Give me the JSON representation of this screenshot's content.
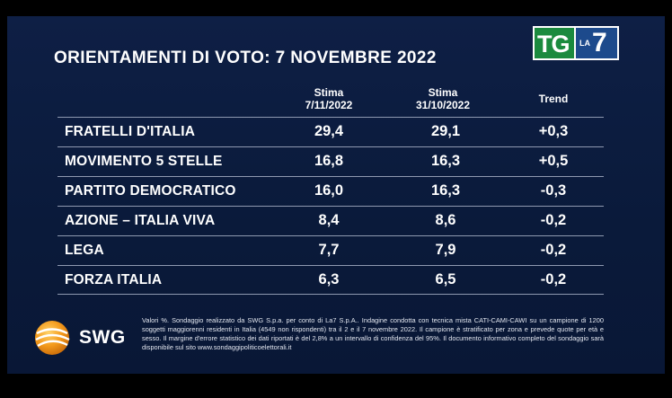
{
  "header": {
    "title": "ORIENTAMENTI DI VOTO: 7 NOVEMBRE 2022"
  },
  "logo": {
    "tg": "TG",
    "la": "LA",
    "seven": "7"
  },
  "table": {
    "columns": [
      {
        "line1": "Stima",
        "line2": "7/11/2022"
      },
      {
        "line1": "Stima",
        "line2": "31/10/2022"
      },
      {
        "line1": "Trend",
        "line2": ""
      }
    ],
    "rows": [
      {
        "party": "FRATELLI D'ITALIA",
        "stima_current": "29,4",
        "stima_previous": "29,1",
        "trend": "+0,3"
      },
      {
        "party": "MOVIMENTO 5 STELLE",
        "stima_current": "16,8",
        "stima_previous": "16,3",
        "trend": "+0,5"
      },
      {
        "party": "PARTITO DEMOCRATICO",
        "stima_current": "16,0",
        "stima_previous": "16,3",
        "trend": "-0,3"
      },
      {
        "party": "AZIONE – ITALIA VIVA",
        "stima_current": "8,4",
        "stima_previous": "8,6",
        "trend": "-0,2"
      },
      {
        "party": "LEGA",
        "stima_current": "7,7",
        "stima_previous": "7,9",
        "trend": "-0,2"
      },
      {
        "party": "FORZA ITALIA",
        "stima_current": "6,3",
        "stima_previous": "6,5",
        "trend": "-0,2"
      }
    ]
  },
  "footer": {
    "swg_logo_text": "SWG",
    "disclaimer": "Valori %. Sondaggio realizzato da SWG S.p.a. per conto di La7 S.p.A.. Indagine condotta con tecnica mista CATI-CAMI-CAWI su un campione di 1200 soggetti maggiorenni residenti in Italia (4549 non rispondenti) tra il 2 e il 7 novembre 2022. Il campione è stratificato per zona e prevede quote per età e sesso. Il margine d'errore statistico dei dati riportati è del 2,8% a un intervallo di confidenza del 95%. Il documento informativo completo del sondaggio sarà disponibile sul sito www.sondaggipoliticoelettorali.it"
  },
  "colors": {
    "background": "#0b1b3d",
    "text": "#ffffff",
    "row_divider": "#8f99b0",
    "tg_green": "#1b8a3e",
    "la7_blue": "#1d4a8c",
    "swg_orange": "#f39a1c"
  }
}
